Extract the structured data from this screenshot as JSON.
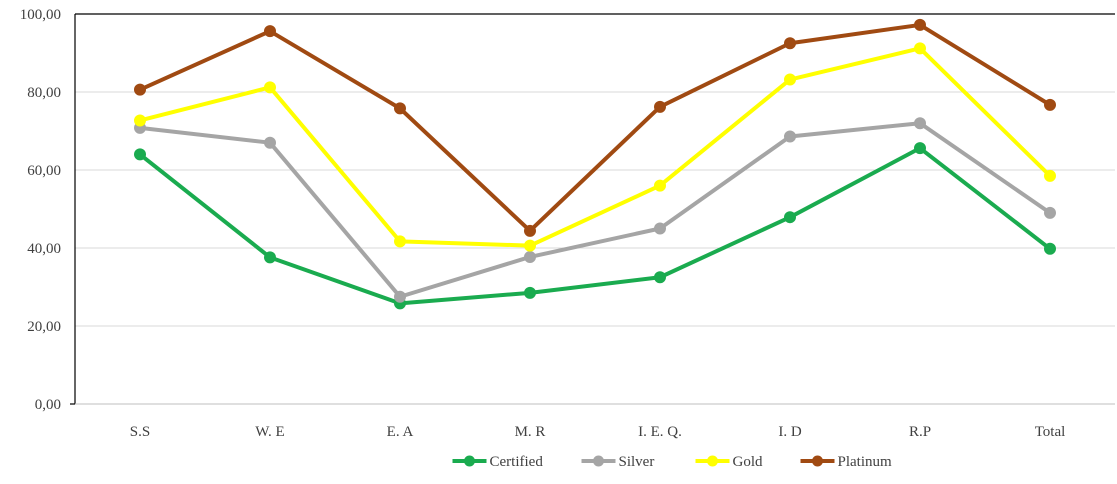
{
  "chart_data": {
    "type": "line",
    "categories": [
      "S.S",
      "W. E",
      "E. A",
      "M. R",
      "I. E. Q.",
      "I. D",
      "R.P",
      "Total"
    ],
    "series": [
      {
        "name": "Certified",
        "color": "#1aab4f",
        "values": [
          64.0,
          37.6,
          25.8,
          28.5,
          32.5,
          47.9,
          65.6,
          39.8
        ]
      },
      {
        "name": "Silver",
        "color": "#a5a5a5",
        "values": [
          70.8,
          67.0,
          27.5,
          37.7,
          45.0,
          68.6,
          72.0,
          49.0
        ]
      },
      {
        "name": "Gold",
        "color": "#ffff00",
        "values": [
          72.7,
          81.2,
          41.7,
          40.6,
          56.0,
          83.2,
          91.2,
          58.5
        ]
      },
      {
        "name": "Platinum",
        "color": "#a04a12",
        "values": [
          80.6,
          95.6,
          75.8,
          44.4,
          76.2,
          92.5,
          97.2,
          76.7
        ]
      }
    ],
    "yticks": [
      "0,00",
      "20,00",
      "40,00",
      "60,00",
      "80,00",
      "100,00"
    ],
    "ylim": [
      0,
      100
    ],
    "grid": true,
    "legend": "bottom",
    "title": "",
    "xlabel": "",
    "ylabel": ""
  }
}
